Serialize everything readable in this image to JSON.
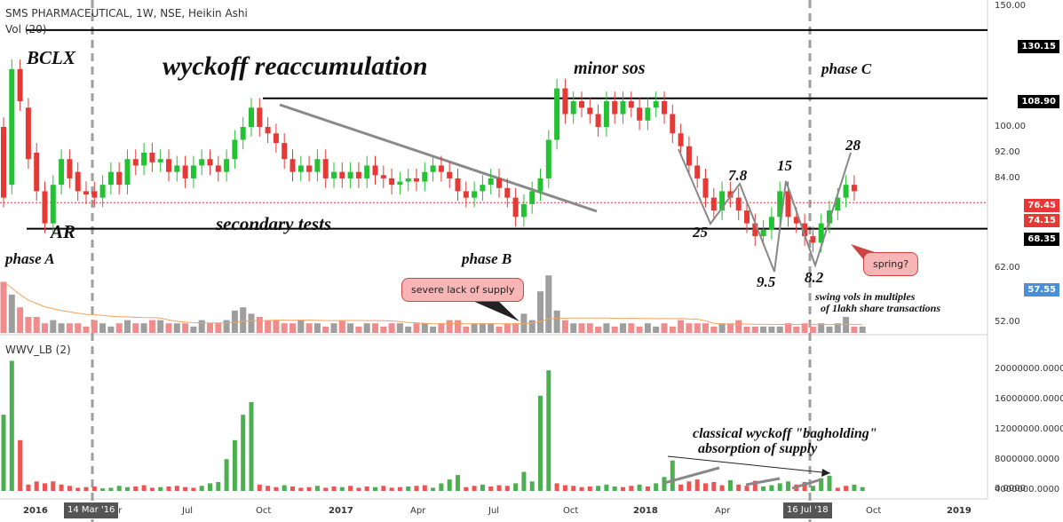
{
  "header": {
    "title": "SMS PHARMACEUTICAL, 1W, NSE, Heikin Ashi",
    "volume_label": "Vol (20)",
    "indicator_label": "WWV_LB (2)"
  },
  "annotations": {
    "main_title": "wyckoff reaccumulation",
    "bclx": "BCLX",
    "ar": "AR",
    "phase_a": "phase A",
    "phase_b": "phase B",
    "phase_c": "phase C",
    "minor_sos": "minor sos",
    "secondary_tests": "secondary tests",
    "swing_notes": [
      "swing vols in multiples",
      "of 1lakh share transactions"
    ],
    "bagholding_lines": [
      "classical wyckoff \"bagholding\"",
      "absorption of supply"
    ],
    "callout_supply": "severe lack of supply",
    "callout_spring": "spring?",
    "swing_values": [
      "25",
      "7.8",
      "9.5",
      "15",
      "8.2",
      "28"
    ]
  },
  "price_axis": {
    "ticks": [
      "150.00",
      "100.00",
      "92.00",
      "84.00",
      "62.00",
      "52.00"
    ],
    "labels": [
      {
        "text": "130.15",
        "color": "#000000"
      },
      {
        "text": "108.90",
        "color": "#000000"
      },
      {
        "text": "76.45",
        "color": "#e53935"
      },
      {
        "text": "74.15",
        "color": "#e53935"
      },
      {
        "text": "68.35",
        "color": "#000000"
      },
      {
        "text": "57.55",
        "color": "#4a90d9"
      }
    ]
  },
  "indicator_axis": {
    "ticks": [
      "20000000.0000",
      "16000000.0000",
      "12000000.0000",
      "8000000.0000",
      "4000000.0000",
      "0.0000"
    ]
  },
  "x_axis": {
    "ticks": [
      "2016",
      "Apr",
      "Jul",
      "Oct",
      "2017",
      "Apr",
      "Jul",
      "Oct",
      "2018",
      "Apr",
      "Oct",
      "2019"
    ],
    "markers": [
      "14 Mar '16",
      "16 Jul '18"
    ]
  },
  "chart_data": [
    {
      "type": "candlestick",
      "title": "SMS PHARMACEUTICAL, 1W, NSE, Heikin Ashi",
      "x_range": [
        "2016-01",
        "2019-01"
      ],
      "ylim": [
        48,
        150
      ],
      "horizontal_levels": [
        130.15,
        108.9,
        68.35
      ],
      "current_price": 76.45,
      "grid": false,
      "colors": {
        "up": "#22c232",
        "down": "#e53935"
      },
      "candles": [
        [
          100,
          78
        ],
        [
          82,
          118
        ],
        [
          118,
          108
        ],
        [
          106,
          90
        ],
        [
          92,
          80
        ],
        [
          80,
          70
        ],
        [
          70,
          82
        ],
        [
          82,
          90
        ],
        [
          90,
          84
        ],
        [
          86,
          80
        ],
        [
          80,
          79
        ],
        [
          80,
          78
        ],
        [
          78,
          82
        ],
        [
          82,
          86
        ],
        [
          86,
          82
        ],
        [
          82,
          90
        ],
        [
          90,
          88
        ],
        [
          88,
          92
        ],
        [
          92,
          89
        ],
        [
          89,
          90
        ],
        [
          90,
          86
        ],
        [
          86,
          88
        ],
        [
          88,
          84
        ],
        [
          84,
          88
        ],
        [
          88,
          90
        ],
        [
          90,
          88
        ],
        [
          88,
          86
        ],
        [
          86,
          90
        ],
        [
          90,
          96
        ],
        [
          96,
          100
        ],
        [
          100,
          106
        ],
        [
          106,
          100
        ],
        [
          100,
          98
        ],
        [
          98,
          95
        ],
        [
          95,
          90
        ],
        [
          90,
          86
        ],
        [
          86,
          88
        ],
        [
          88,
          86
        ],
        [
          86,
          90
        ],
        [
          90,
          84
        ],
        [
          84,
          86
        ],
        [
          86,
          84
        ],
        [
          84,
          86
        ],
        [
          86,
          84
        ],
        [
          84,
          88
        ],
        [
          88,
          85
        ],
        [
          85,
          84
        ],
        [
          84,
          82
        ],
        [
          82,
          83
        ],
        [
          83,
          84
        ],
        [
          84,
          83
        ],
        [
          83,
          86
        ],
        [
          86,
          88
        ],
        [
          88,
          86
        ],
        [
          86,
          84
        ],
        [
          84,
          80
        ],
        [
          80,
          78
        ],
        [
          78,
          80
        ],
        [
          80,
          82
        ],
        [
          82,
          84
        ],
        [
          84,
          81
        ],
        [
          81,
          78
        ],
        [
          78,
          72
        ],
        [
          72,
          76
        ],
        [
          76,
          80
        ],
        [
          80,
          84
        ],
        [
          84,
          96
        ],
        [
          96,
          112
        ],
        [
          112,
          104
        ],
        [
          104,
          108
        ],
        [
          108,
          106
        ],
        [
          106,
          104
        ],
        [
          104,
          100
        ],
        [
          100,
          108
        ],
        [
          108,
          104
        ],
        [
          104,
          108
        ],
        [
          108,
          106
        ],
        [
          106,
          102
        ],
        [
          102,
          106
        ],
        [
          106,
          108
        ],
        [
          108,
          104
        ],
        [
          104,
          98
        ],
        [
          98,
          94
        ],
        [
          94,
          88
        ],
        [
          88,
          84
        ],
        [
          84,
          78
        ],
        [
          78,
          74
        ],
        [
          74,
          80
        ],
        [
          80,
          78
        ],
        [
          78,
          74
        ],
        [
          74,
          70
        ],
        [
          70,
          66
        ],
        [
          66,
          68
        ],
        [
          68,
          72
        ],
        [
          72,
          80
        ],
        [
          80,
          72
        ],
        [
          72,
          70
        ],
        [
          70,
          66
        ],
        [
          66,
          64
        ],
        [
          64,
          70
        ],
        [
          70,
          74
        ],
        [
          74,
          78
        ],
        [
          78,
          82
        ],
        [
          82,
          80
        ]
      ]
    },
    {
      "type": "bar",
      "title": "Vol (20)",
      "colors": {
        "up": "#9e9e9e",
        "down": "#f28b8b"
      },
      "values": [
        16,
        12,
        8,
        5,
        5,
        3,
        4,
        3,
        3,
        3,
        2,
        4,
        3,
        2,
        3,
        4,
        3,
        3,
        4,
        4,
        3,
        3,
        3,
        2,
        4,
        3,
        3,
        4,
        7,
        8,
        6,
        5,
        4,
        4,
        3,
        3,
        4,
        3,
        3,
        2,
        3,
        4,
        3,
        2,
        3,
        3,
        2,
        3,
        3,
        2,
        3,
        3,
        2,
        3,
        4,
        4,
        2,
        3,
        3,
        3,
        2,
        3,
        3,
        6,
        4,
        13,
        18,
        7,
        4,
        3,
        3,
        3,
        2,
        3,
        2,
        3,
        3,
        2,
        3,
        2,
        3,
        2,
        4,
        3,
        3,
        3,
        2,
        3,
        3,
        4,
        2,
        2,
        2,
        2,
        2,
        3,
        2,
        3,
        2,
        3,
        2,
        3,
        5,
        2,
        2
      ]
    },
    {
      "type": "bar",
      "title": "WWV_LB (2)",
      "ylim": [
        0,
        20000000
      ],
      "colors": {
        "up": "#4caf50",
        "down": "#ef5350"
      },
      "values": [
        12000000,
        20500000,
        8000000,
        1000000,
        1500000,
        1200000,
        1500000,
        1000000,
        800000,
        500000,
        600000,
        700000,
        400000,
        500000,
        800000,
        600000,
        700000,
        900000,
        500000,
        600000,
        700000,
        800000,
        600000,
        500000,
        800000,
        1200000,
        1400000,
        5000000,
        8000000,
        12000000,
        14000000,
        1000000,
        800000,
        600000,
        900000,
        700000,
        500000,
        600000,
        800000,
        500000,
        700000,
        600000,
        800000,
        500000,
        700000,
        600000,
        800000,
        500000,
        600000,
        700000,
        800000,
        900000,
        500000,
        1200000,
        1800000,
        2500000,
        600000,
        800000,
        1000000,
        700000,
        900000,
        800000,
        1200000,
        3000000,
        1500000,
        15000000,
        19000000,
        1200000,
        900000,
        800000,
        600000,
        700000,
        800000,
        1000000,
        700000,
        600000,
        800000,
        1000000,
        700000,
        1200000,
        2200000,
        4800000,
        1000000,
        1500000,
        1800000,
        1200000,
        1400000,
        900000,
        1700000,
        1000000,
        800000,
        1600000,
        700000,
        900000,
        1200000,
        1500000,
        1000000,
        1400000,
        800000,
        2000000,
        2400000,
        500000,
        800000,
        1000000,
        600000
      ],
      "directions": [
        1,
        1,
        -1,
        -1,
        -1,
        -1,
        -1,
        -1,
        -1,
        -1,
        -1,
        -1,
        1,
        1,
        1,
        1,
        -1,
        -1,
        -1,
        1,
        -1,
        -1,
        -1,
        -1,
        1,
        1,
        1,
        1,
        1,
        1,
        1,
        -1,
        -1,
        -1,
        1,
        -1,
        -1,
        -1,
        1,
        -1,
        -1,
        1,
        -1,
        -1,
        -1,
        1,
        -1,
        -1,
        -1,
        1,
        -1,
        -1,
        1,
        1,
        1,
        1,
        -1,
        -1,
        1,
        -1,
        -1,
        -1,
        1,
        1,
        1,
        1,
        1,
        -1,
        -1,
        -1,
        -1,
        -1,
        1,
        1,
        1,
        -1,
        -1,
        1,
        -1,
        1,
        1,
        1,
        -1,
        -1,
        -1,
        -1,
        -1,
        -1,
        1,
        -1,
        -1,
        -1,
        1,
        1,
        1,
        1,
        -1,
        -1,
        1,
        1,
        1,
        -1,
        -1,
        1,
        1
      ]
    }
  ]
}
